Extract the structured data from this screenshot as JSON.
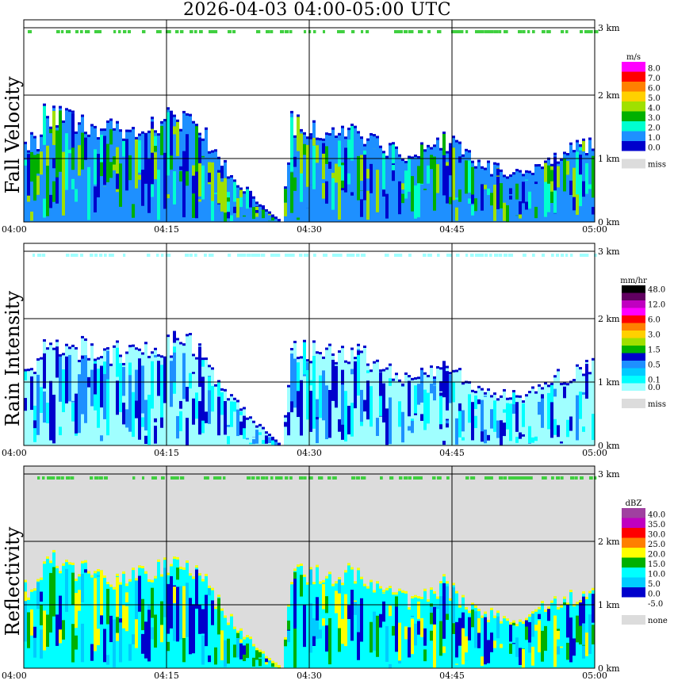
{
  "title": "2026-04-03   04:00-05:00 UTC",
  "time_ticks": [
    "04:00",
    "04:15",
    "04:30",
    "04:45",
    "05:00"
  ],
  "height_ticks": [
    "0 km",
    "1 km",
    "2 km",
    "3 km"
  ],
  "panels": [
    {
      "id": "fall-velocity",
      "label": "Fall Velocity",
      "unit": "m/s",
      "background": "#ffffff",
      "legend": [
        {
          "label": "8.0",
          "color": "#ff00ff"
        },
        {
          "label": "7.0",
          "color": "#ff0000"
        },
        {
          "label": "6.0",
          "color": "#ff8000"
        },
        {
          "label": "5.0",
          "color": "#ffd000"
        },
        {
          "label": "4.0",
          "color": "#a0e000"
        },
        {
          "label": "3.0",
          "color": "#00b000"
        },
        {
          "label": "2.0",
          "color": "#00ffd0"
        },
        {
          "label": "1.0",
          "color": "#1e90ff"
        },
        {
          "label": "0.0",
          "color": "#0000cc"
        },
        {
          "label": "miss",
          "color": "#dcdcdc"
        }
      ],
      "fill_color": "#1e90ff",
      "accent_colors": [
        "#00b000",
        "#a0e000",
        "#00ffd0",
        "#0000cc"
      ]
    },
    {
      "id": "rain-intensity",
      "label": "Rain Intensity",
      "unit": "mm/hr",
      "background": "#ffffff",
      "legend": [
        {
          "label": "48.0",
          "color": "#000000"
        },
        {
          "label": "",
          "color": "#600060"
        },
        {
          "label": "12.0",
          "color": "#c000c0"
        },
        {
          "label": "",
          "color": "#ff00ff"
        },
        {
          "label": "6.0",
          "color": "#ff0000"
        },
        {
          "label": "",
          "color": "#ff8000"
        },
        {
          "label": "3.0",
          "color": "#ffd000"
        },
        {
          "label": "",
          "color": "#a0e000"
        },
        {
          "label": "1.5",
          "color": "#00b000"
        },
        {
          "label": "",
          "color": "#0000cc"
        },
        {
          "label": "0.5",
          "color": "#1e90ff"
        },
        {
          "label": "",
          "color": "#00ccff"
        },
        {
          "label": "0.1",
          "color": "#00ffff"
        },
        {
          "label": "0.0",
          "color": "#a0ffff"
        },
        {
          "label": "miss",
          "color": "#dcdcdc"
        }
      ],
      "fill_color": "#a0ffff",
      "accent_colors": [
        "#00ffff",
        "#1e90ff",
        "#0000cc"
      ]
    },
    {
      "id": "reflectivity",
      "label": "Reflectivity",
      "unit": "dBZ",
      "background": "#dcdcdc",
      "legend": [
        {
          "label": "40.0",
          "color": "#a040a0"
        },
        {
          "label": "35.0",
          "color": "#c000c0"
        },
        {
          "label": "30.0",
          "color": "#ff0000"
        },
        {
          "label": "25.0",
          "color": "#ff8000"
        },
        {
          "label": "20.0",
          "color": "#ffff00"
        },
        {
          "label": "15.0",
          "color": "#00b000"
        },
        {
          "label": "10.0",
          "color": "#00ffff"
        },
        {
          "label": "5.0",
          "color": "#00ccff"
        },
        {
          "label": "0.0",
          "color": "#0000cc"
        },
        {
          "label": "-5.0",
          "color": "#ffffff"
        },
        {
          "label": "none",
          "color": "#dcdcdc"
        }
      ],
      "fill_color": "#00ffff",
      "accent_colors": [
        "#00ccff",
        "#0000cc",
        "#00b000",
        "#ffff00"
      ]
    }
  ],
  "chart_data": {
    "type": "heatmap",
    "title": "2026-04-03   04:00-05:00 UTC",
    "xlabel": "",
    "x_range": [
      "04:00",
      "05:00"
    ],
    "y_range_km": [
      0,
      3.2
    ],
    "panels": [
      "Fall Velocity",
      "Rain Intensity",
      "Reflectivity"
    ],
    "echo_top_km": [
      {
        "t": "04:02",
        "top": 1.8
      },
      {
        "t": "04:05",
        "top": 1.6
      },
      {
        "t": "04:09",
        "top": 1.5
      },
      {
        "t": "04:13",
        "top": 1.55
      },
      {
        "t": "04:16",
        "top": 1.7
      },
      {
        "t": "04:18",
        "top": 1.6
      },
      {
        "t": "04:21",
        "top": 0.9
      },
      {
        "t": "04:24",
        "top": 0.4
      },
      {
        "t": "04:27",
        "top": 0.0
      },
      {
        "t": "04:28",
        "top": 1.6
      },
      {
        "t": "04:31",
        "top": 1.55
      },
      {
        "t": "04:35",
        "top": 1.5
      },
      {
        "t": "04:38",
        "top": 1.2
      },
      {
        "t": "04:41",
        "top": 1.1
      },
      {
        "t": "04:44",
        "top": 1.35
      },
      {
        "t": "04:48",
        "top": 0.9
      },
      {
        "t": "04:52",
        "top": 0.8
      },
      {
        "t": "04:56",
        "top": 1.1
      },
      {
        "t": "05:00",
        "top": 1.3
      }
    ]
  }
}
